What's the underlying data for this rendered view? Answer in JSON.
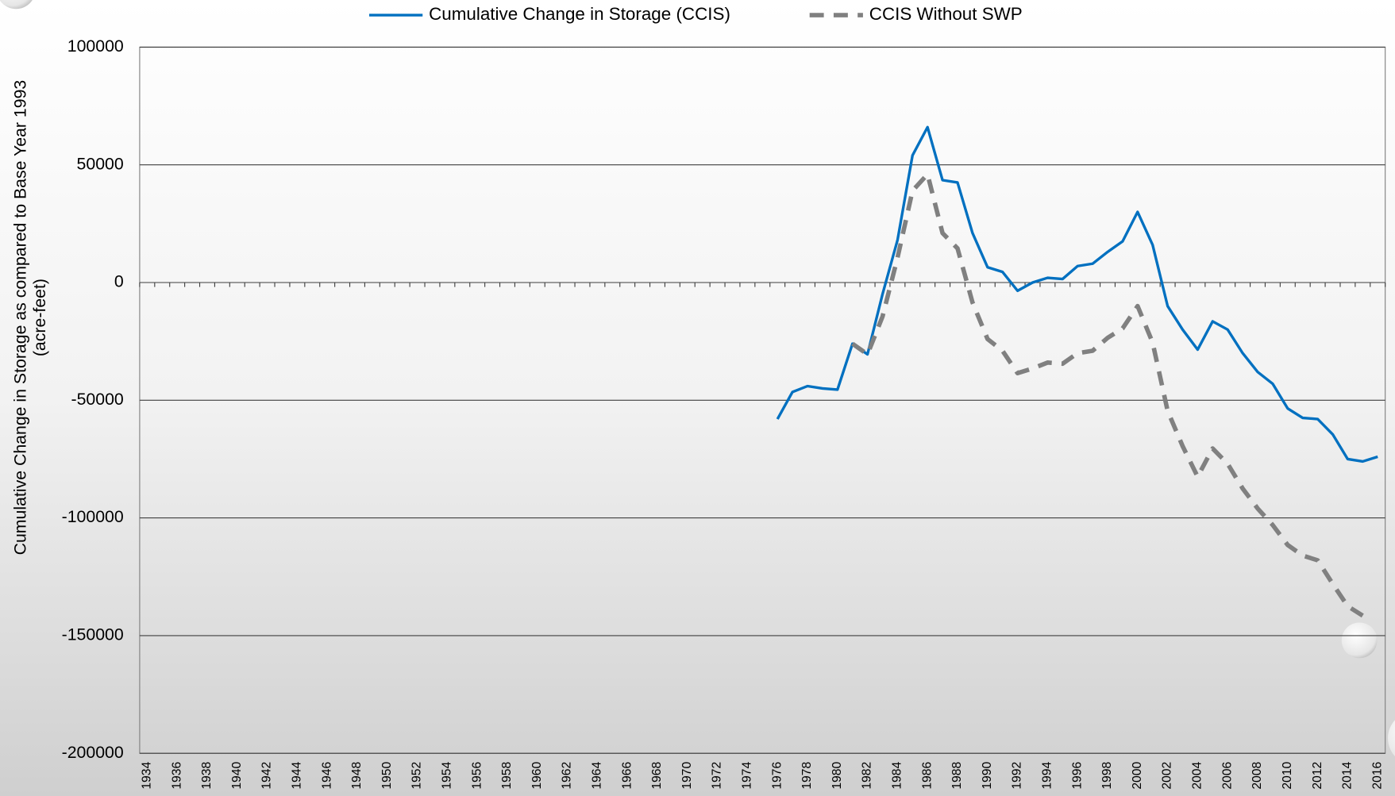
{
  "chart_data": {
    "type": "line",
    "ylabel": [
      "Cumulative Change in Storage as compared to Base Year 1993",
      "(acre-feet)"
    ],
    "categories": [
      "1934",
      null,
      "1936",
      null,
      "1938",
      null,
      "1940",
      null,
      "1942",
      null,
      "1944",
      null,
      "1946",
      null,
      "1948",
      null,
      "1950",
      null,
      "1952",
      null,
      "1954",
      null,
      "1956",
      null,
      "1958",
      null,
      "1960",
      null,
      "1962",
      null,
      "1964",
      null,
      "1966",
      null,
      "1968",
      null,
      "1970",
      null,
      "1972",
      null,
      "1974",
      null,
      "1976",
      null,
      "1978",
      null,
      "1980",
      null,
      "1982",
      null,
      "1984",
      null,
      "1986",
      null,
      "1988",
      null,
      "1990",
      null,
      "1992",
      null,
      "1994",
      null,
      "1996",
      null,
      "1998",
      null,
      "2000",
      null,
      "2002",
      null,
      "2004",
      null,
      "2006",
      null,
      "2008",
      null,
      "2010",
      null,
      "2012",
      null,
      "2014",
      null,
      "2016"
    ],
    "series": [
      {
        "name": "Cumulative Change in Storage (CCIS)",
        "color": "#0070c0",
        "dash": false,
        "values": [
          null,
          null,
          null,
          null,
          null,
          null,
          null,
          null,
          null,
          null,
          null,
          null,
          null,
          null,
          null,
          null,
          null,
          null,
          null,
          null,
          null,
          null,
          null,
          null,
          null,
          null,
          null,
          null,
          null,
          null,
          null,
          null,
          null,
          null,
          null,
          null,
          null,
          null,
          null,
          null,
          null,
          null,
          -58000,
          -46500,
          -44000,
          -45000,
          -45500,
          -26000,
          -30500,
          -5000,
          18000,
          54000,
          66000,
          43500,
          42500,
          21000,
          6500,
          4500,
          -3500,
          0,
          2000,
          1500,
          7000,
          8000,
          13000,
          17500,
          30000,
          16000,
          -10000,
          -20000,
          -28500,
          -16500,
          -20000,
          -30000,
          -38000,
          -43000,
          -53500,
          -57500,
          -58000,
          -64500,
          -75000,
          -76000,
          -74000
        ]
      },
      {
        "name": "CCIS Without SWP",
        "color": "#808080",
        "dash": true,
        "values": [
          null,
          null,
          null,
          null,
          null,
          null,
          null,
          null,
          null,
          null,
          null,
          null,
          null,
          null,
          null,
          null,
          null,
          null,
          null,
          null,
          null,
          null,
          null,
          null,
          null,
          null,
          null,
          null,
          null,
          null,
          null,
          null,
          null,
          null,
          null,
          null,
          null,
          null,
          null,
          null,
          null,
          null,
          null,
          null,
          null,
          null,
          null,
          -26000,
          -30500,
          -14500,
          10500,
          39000,
          46000,
          21000,
          14500,
          -8500,
          -24000,
          -29000,
          -38500,
          -36500,
          -34000,
          -34500,
          -30000,
          -29000,
          -23500,
          -19500,
          -10000,
          -25500,
          -54500,
          -69500,
          -82500,
          -70500,
          -77000,
          -87500,
          -96000,
          -103000,
          -111500,
          -116000,
          -118000,
          -128000,
          -137500,
          -141500,
          null
        ]
      }
    ],
    "ylim": [
      -200000,
      100000
    ],
    "yticks": [
      -200000,
      -150000,
      -100000,
      -50000,
      0,
      50000,
      100000
    ],
    "grid": true
  }
}
